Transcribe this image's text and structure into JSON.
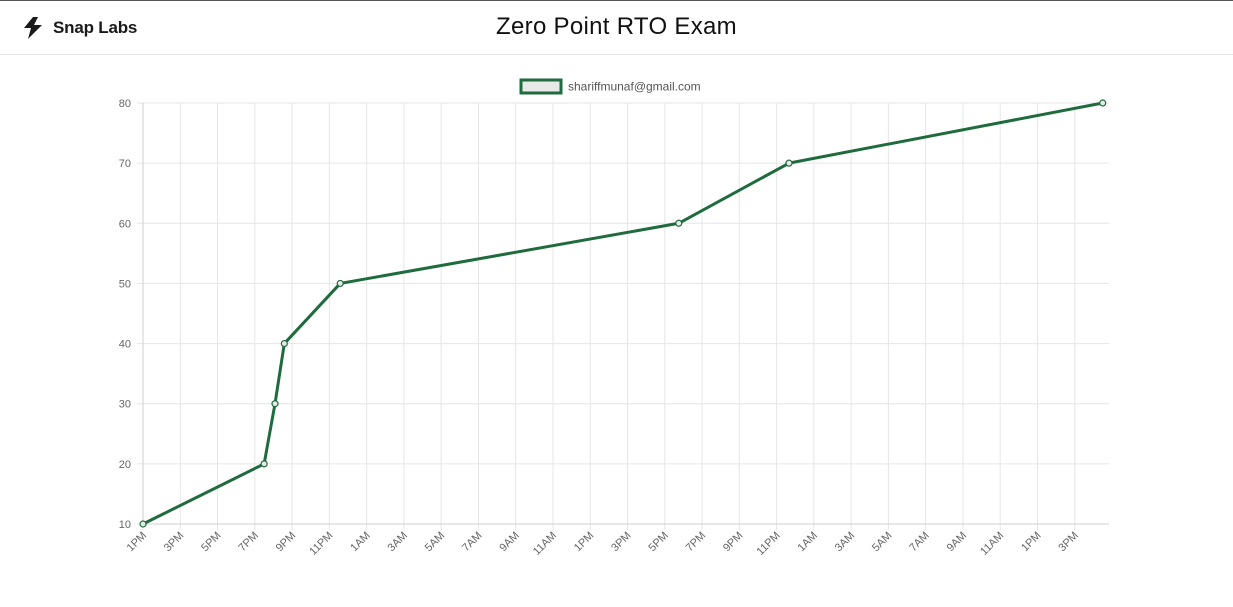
{
  "brand": {
    "name": "Snap Labs",
    "logo_icon": "snap-bolt-icon"
  },
  "page": {
    "title": "Zero Point RTO Exam"
  },
  "colors": {
    "line": "#1f6b3e",
    "grid": "#e6e6e6",
    "legend_fill": "#e8e8e8"
  },
  "chart_data": {
    "type": "line",
    "title": "",
    "xlabel": "",
    "ylabel": "",
    "legend_position": "top-center",
    "grid": true,
    "ylim": [
      10,
      80
    ],
    "y_ticks": [
      10,
      20,
      30,
      40,
      50,
      60,
      70,
      80
    ],
    "x_ticks": [
      "1PM",
      "3PM",
      "5PM",
      "7PM",
      "9PM",
      "11PM",
      "1AM",
      "3AM",
      "5AM",
      "7AM",
      "9AM",
      "11AM",
      "1PM",
      "3PM",
      "5PM",
      "7PM",
      "9PM",
      "11PM",
      "1AM",
      "3AM",
      "5AM",
      "7AM",
      "9AM",
      "11AM",
      "1PM",
      "3PM"
    ],
    "series": [
      {
        "name": "shariffmunaf@gmail.com",
        "color": "#1f6b3e",
        "points": [
          {
            "x": "1PM",
            "y": 10
          },
          {
            "x": "7:30PM",
            "y": 20
          },
          {
            "x": "8:05PM",
            "y": 30
          },
          {
            "x": "8:35PM",
            "y": 40
          },
          {
            "x": "11:35PM",
            "y": 50
          },
          {
            "x": "5:45PM",
            "y": 60
          },
          {
            "x": "11:40PM",
            "y": 70
          },
          {
            "x": "4:30PM",
            "y": 80
          }
        ]
      }
    ]
  }
}
